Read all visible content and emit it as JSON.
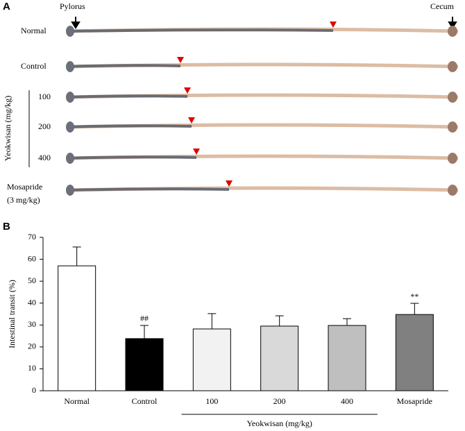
{
  "panel_a": {
    "label": "A",
    "pylorus": "Pylorus",
    "cecum": "Cecum",
    "rows": [
      {
        "label": [
          "Normal"
        ]
      },
      {
        "label": [
          "Control"
        ]
      },
      {
        "label": [
          "100"
        ]
      },
      {
        "label": [
          "200"
        ]
      },
      {
        "label": [
          "400"
        ]
      },
      {
        "label": [
          "Mosapride",
          "(3 mg/kg)"
        ]
      }
    ],
    "group_label": "Yeokwisan (mg/kg)"
  },
  "panel_b": {
    "label": "B"
  },
  "chart_data": {
    "type": "bar",
    "ylabel": "Intestinal transit (%)",
    "categories": [
      "Normal",
      "Control",
      "100",
      "200",
      "400",
      "Mosapride"
    ],
    "values": [
      57.0,
      23.8,
      28.2,
      29.5,
      29.8,
      34.8
    ],
    "errors": [
      8.6,
      6.0,
      7.0,
      4.7,
      3.1,
      5.1
    ],
    "colors": [
      "#ffffff",
      "#000000",
      "#f2f2f2",
      "#d9d9d9",
      "#bfbfbf",
      "#808080"
    ],
    "significance": [
      null,
      "##",
      null,
      null,
      null,
      "**"
    ],
    "category_group": {
      "label": "Yeokwisan (mg/kg)",
      "members": [
        "100",
        "200",
        "400"
      ]
    },
    "ylim": [
      0,
      70
    ],
    "yticks": [
      0,
      10,
      20,
      30,
      40,
      50,
      60,
      70
    ]
  }
}
